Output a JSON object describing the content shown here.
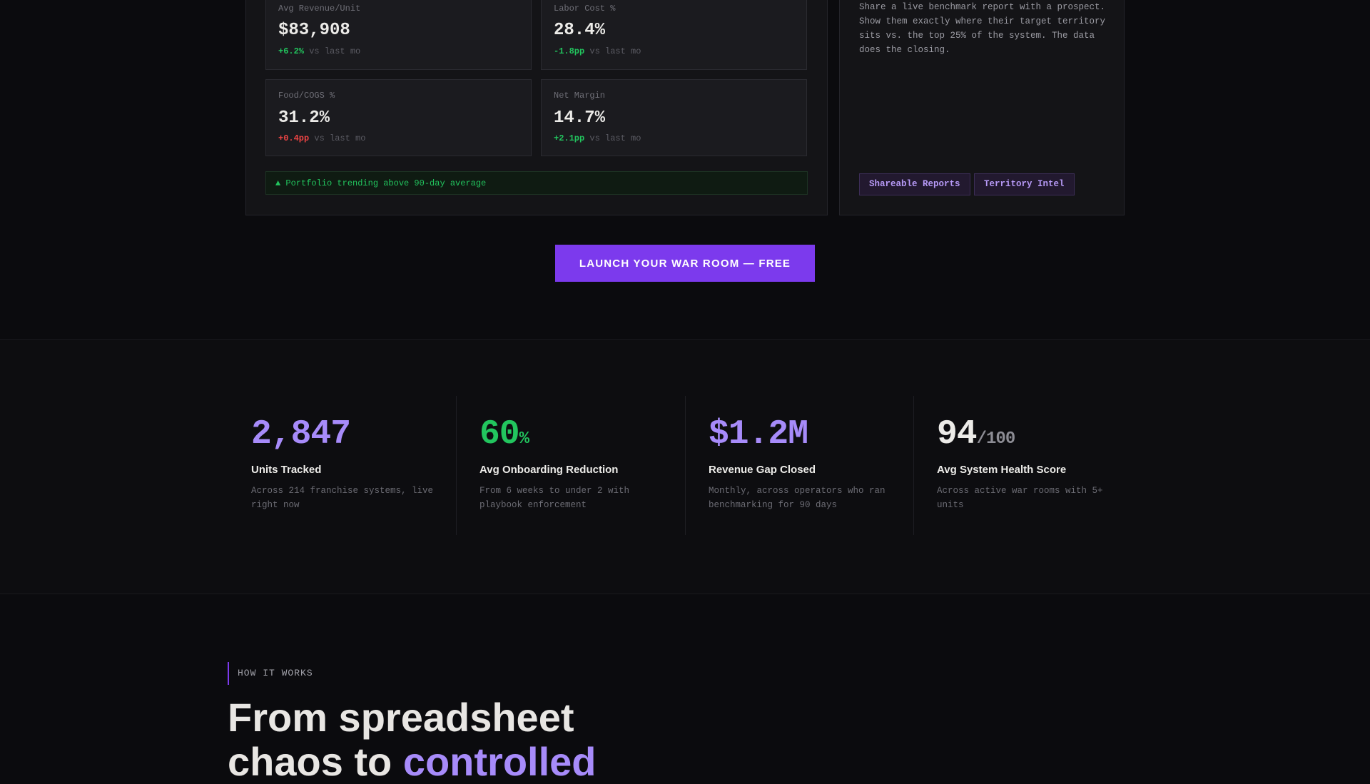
{
  "dashboard": {
    "kpis": [
      {
        "label": "Avg Revenue/Unit",
        "value": "$83,908",
        "delta": "+6.2%",
        "delta_dir": "up",
        "delta_suffix": "vs last mo"
      },
      {
        "label": "Labor Cost %",
        "value": "28.4%",
        "delta": "-1.8pp",
        "delta_dir": "up",
        "delta_suffix": "vs last mo"
      },
      {
        "label": "Food/COGS %",
        "value": "31.2%",
        "delta": "+0.4pp",
        "delta_dir": "down",
        "delta_suffix": "vs last mo"
      },
      {
        "label": "Net Margin",
        "value": "14.7%",
        "delta": "+2.1pp",
        "delta_dir": "up",
        "delta_suffix": "vs last mo"
      }
    ],
    "trend_banner": "▲ Portfolio trending above 90-day average"
  },
  "feature_card": {
    "description": "Share a live benchmark report with a prospect. Show them exactly where their target territory sits vs. the top 25% of the system. The data does the closing.",
    "tags": [
      "Shareable Reports",
      "Territory Intel"
    ]
  },
  "cta": {
    "label": "LAUNCH YOUR WAR ROOM — FREE"
  },
  "stats": [
    {
      "value": "2,847",
      "suffix": "",
      "title": "Units Tracked",
      "description": "Across 214 franchise systems, live right now"
    },
    {
      "value": "60",
      "suffix": "%",
      "title": "Avg Onboarding Reduction",
      "description": "From 6 weeks to under 2 with playbook enforcement"
    },
    {
      "value": "$1.2M",
      "suffix": "",
      "title": "Revenue Gap Closed",
      "description": "Monthly, across operators who ran benchmarking for 90 days"
    },
    {
      "value": "94",
      "suffix": "/100",
      "title": "Avg System Health Score",
      "description": "Across active war rooms with 5+ units"
    }
  ],
  "how_it_works": {
    "eyebrow": "HOW IT WORKS",
    "headline_line1": "From spreadsheet",
    "headline_line2_plain": "chaos to ",
    "headline_line2_accent": "controlled"
  },
  "colors": {
    "accent": "#7c3aed",
    "accent_light": "#a78bfa",
    "positive": "#22c55e",
    "negative": "#ef4444",
    "background": "#0b0b0e"
  }
}
